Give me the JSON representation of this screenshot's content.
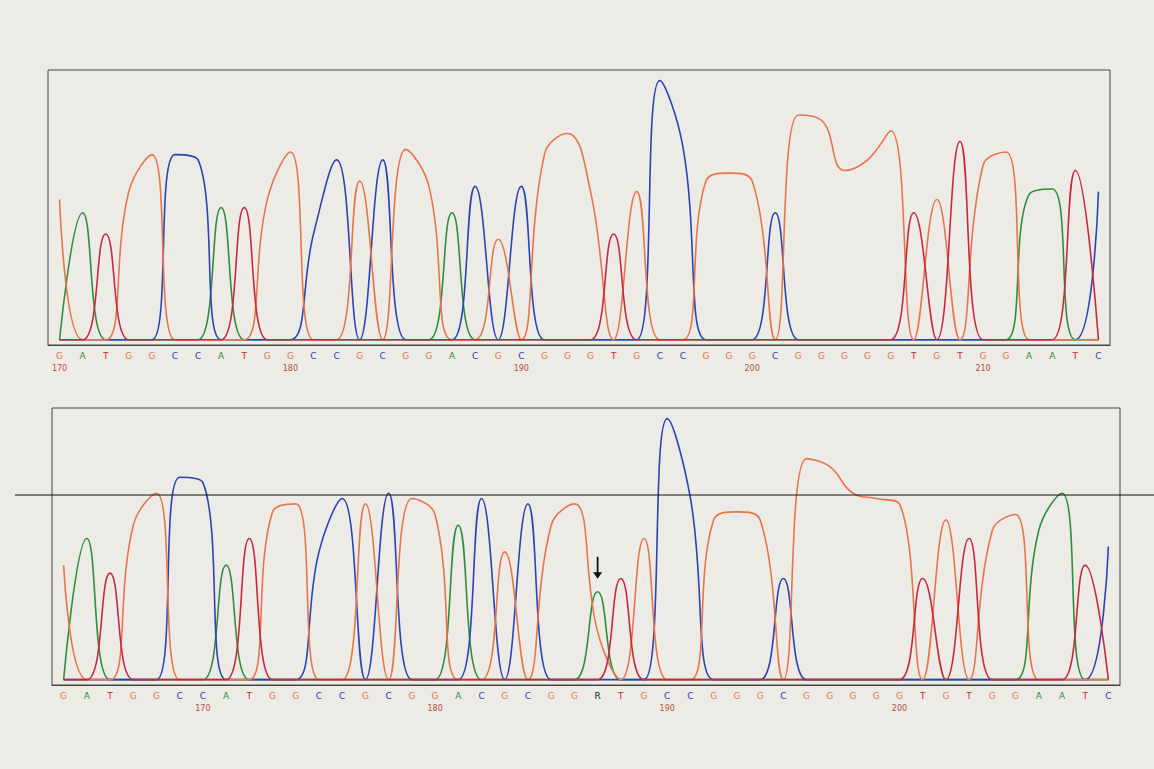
{
  "chart_data": [
    {
      "type": "line",
      "x": [
        170,
        171,
        172,
        173,
        174,
        175,
        176,
        177,
        178,
        179,
        180,
        181,
        182,
        183,
        184,
        185,
        186,
        187,
        188,
        189,
        190,
        191,
        192,
        193,
        194,
        195,
        196,
        197,
        198,
        199,
        200,
        201,
        202,
        203,
        204,
        205,
        206,
        207,
        208,
        209,
        210,
        211,
        212,
        213,
        214,
        215
      ],
      "base_calls": [
        "G",
        "A",
        "T",
        "G",
        "G",
        "C",
        "C",
        "A",
        "T",
        "G",
        "G",
        "C",
        "C",
        "G",
        "C",
        "G",
        "G",
        "A",
        "C",
        "G",
        "C",
        "G",
        "G",
        "G",
        "T",
        "G",
        "C",
        "C",
        "G",
        "G",
        "G",
        "C",
        "G",
        "G",
        "G",
        "G",
        "G",
        "T",
        "G",
        "T",
        "G",
        "G",
        "A",
        "A",
        "T",
        "C"
      ],
      "series": [
        {
          "name": "A",
          "color": "#2f8f3c",
          "values": [
            2,
            50,
            2,
            2,
            2,
            2,
            2,
            52,
            2,
            2,
            2,
            2,
            2,
            2,
            2,
            2,
            2,
            50,
            2,
            2,
            2,
            2,
            2,
            2,
            2,
            2,
            2,
            2,
            2,
            2,
            2,
            2,
            2,
            2,
            2,
            2,
            2,
            2,
            2,
            2,
            2,
            2,
            57,
            59,
            2,
            2
          ]
        },
        {
          "name": "C",
          "color": "#2a43b5",
          "values": [
            2,
            2,
            2,
            2,
            2,
            72,
            70,
            2,
            2,
            2,
            2,
            42,
            70,
            2,
            70,
            2,
            2,
            2,
            60,
            2,
            60,
            2,
            2,
            2,
            2,
            2,
            100,
            75,
            2,
            2,
            2,
            50,
            2,
            2,
            2,
            2,
            2,
            2,
            2,
            2,
            2,
            2,
            2,
            2,
            2,
            58
          ]
        },
        {
          "name": "G",
          "color": "#e8754a",
          "values": [
            55,
            2,
            2,
            58,
            72,
            2,
            2,
            2,
            2,
            55,
            73,
            2,
            2,
            62,
            2,
            74,
            60,
            2,
            2,
            40,
            2,
            72,
            80,
            58,
            2,
            58,
            2,
            2,
            62,
            65,
            62,
            2,
            87,
            85,
            66,
            70,
            81,
            2,
            55,
            2,
            68,
            73,
            2,
            2,
            2,
            2
          ]
        },
        {
          "name": "T",
          "color": "#c8283c",
          "values": [
            2,
            2,
            42,
            2,
            2,
            2,
            2,
            2,
            52,
            2,
            2,
            2,
            2,
            2,
            2,
            2,
            2,
            2,
            2,
            2,
            2,
            2,
            2,
            2,
            42,
            2,
            2,
            2,
            2,
            2,
            2,
            2,
            2,
            2,
            2,
            2,
            2,
            50,
            2,
            77,
            2,
            2,
            2,
            2,
            66,
            2
          ]
        }
      ],
      "xlim": [
        169.5,
        215.5
      ],
      "xticks": [
        170,
        180,
        190,
        200,
        210
      ],
      "ylim": [
        0,
        104
      ],
      "tick_labels": "x",
      "grid": false
    },
    {
      "type": "line",
      "x": [
        164,
        165,
        166,
        167,
        168,
        169,
        170,
        171,
        172,
        173,
        174,
        175,
        176,
        177,
        178,
        179,
        180,
        181,
        182,
        183,
        184,
        185,
        186,
        187,
        188,
        189,
        190,
        191,
        192,
        193,
        194,
        195,
        196,
        197,
        198,
        199,
        200,
        201,
        202,
        203,
        204,
        205,
        206,
        207,
        208,
        209
      ],
      "base_calls": [
        "G",
        "A",
        "T",
        "G",
        "G",
        "C",
        "C",
        "A",
        "T",
        "G",
        "G",
        "C",
        "C",
        "G",
        "C",
        "G",
        "G",
        "A",
        "C",
        "G",
        "C",
        "G",
        "G",
        "R",
        "T",
        "G",
        "C",
        "C",
        "G",
        "G",
        "G",
        "C",
        "G",
        "G",
        "G",
        "G",
        "G",
        "T",
        "G",
        "T",
        "G",
        "G",
        "A",
        "A",
        "T",
        "C"
      ],
      "series": [
        {
          "name": "A",
          "color": "#2f8f3c",
          "values": [
            2,
            55,
            2,
            2,
            2,
            2,
            2,
            45,
            2,
            2,
            2,
            2,
            2,
            2,
            2,
            2,
            2,
            60,
            2,
            2,
            2,
            2,
            2,
            35,
            2,
            2,
            2,
            2,
            2,
            2,
            2,
            2,
            2,
            2,
            2,
            2,
            2,
            2,
            2,
            2,
            2,
            2,
            58,
            72,
            2,
            2
          ]
        },
        {
          "name": "C",
          "color": "#2a43b5",
          "values": [
            2,
            2,
            2,
            2,
            2,
            78,
            76,
            2,
            2,
            2,
            2,
            50,
            70,
            2,
            72,
            2,
            2,
            2,
            70,
            2,
            68,
            2,
            2,
            2,
            2,
            2,
            100,
            70,
            2,
            2,
            2,
            40,
            2,
            2,
            2,
            2,
            2,
            2,
            2,
            2,
            2,
            2,
            2,
            2,
            2,
            52
          ]
        },
        {
          "name": "G",
          "color": "#e8754a",
          "values": [
            45,
            2,
            2,
            60,
            72,
            2,
            2,
            2,
            2,
            65,
            68,
            2,
            2,
            68,
            2,
            70,
            64,
            2,
            2,
            50,
            2,
            60,
            68,
            20,
            2,
            55,
            2,
            2,
            62,
            65,
            62,
            2,
            85,
            82,
            72,
            70,
            68,
            2,
            62,
            2,
            58,
            64,
            2,
            2,
            2,
            2
          ]
        },
        {
          "name": "T",
          "color": "#c8283c",
          "values": [
            2,
            2,
            42,
            2,
            2,
            2,
            2,
            2,
            55,
            2,
            2,
            2,
            2,
            2,
            2,
            2,
            2,
            2,
            2,
            2,
            2,
            2,
            2,
            2,
            40,
            2,
            2,
            2,
            2,
            2,
            2,
            2,
            2,
            2,
            2,
            2,
            2,
            40,
            2,
            55,
            2,
            2,
            2,
            2,
            45,
            2
          ]
        }
      ],
      "xlim": [
        163.5,
        209.5
      ],
      "xticks": [
        170,
        180,
        190,
        200
      ],
      "ylim": [
        0,
        104
      ],
      "tick_labels": "x",
      "grid": false
    }
  ]
}
